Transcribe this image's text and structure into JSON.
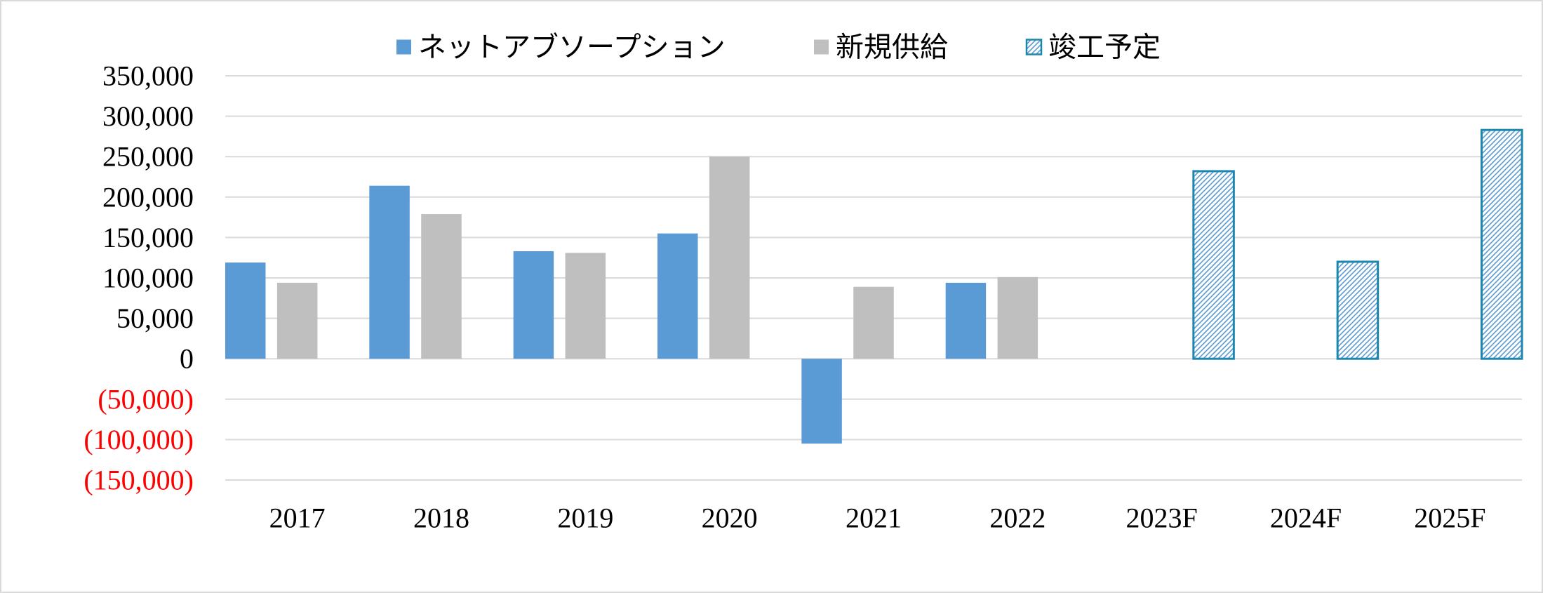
{
  "chart_data": {
    "type": "bar",
    "categories": [
      "2017",
      "2018",
      "2019",
      "2020",
      "2021",
      "2022",
      "2023F",
      "2024F",
      "2025F"
    ],
    "series": [
      {
        "name": "ネットアブソープション",
        "color": "#5b9bd5",
        "hatched": false,
        "values": [
          119000,
          214000,
          133000,
          155000,
          -105000,
          94000,
          null,
          null,
          null
        ]
      },
      {
        "name": "新規供給",
        "color": "#bfbfbf",
        "hatched": false,
        "values": [
          94000,
          179000,
          131000,
          250000,
          89000,
          101000,
          null,
          null,
          null
        ]
      },
      {
        "name": "竣工予定",
        "color": "#1b87ae",
        "hatched": true,
        "values": [
          null,
          null,
          null,
          null,
          null,
          null,
          232000,
          120000,
          283000
        ]
      }
    ],
    "ylim": [
      -150000,
      350000
    ],
    "yticks": [
      {
        "value": 350000,
        "label": "350,000"
      },
      {
        "value": 300000,
        "label": "300,000"
      },
      {
        "value": 250000,
        "label": "250,000"
      },
      {
        "value": 200000,
        "label": "200,000"
      },
      {
        "value": 150000,
        "label": "150,000"
      },
      {
        "value": 100000,
        "label": "100,000"
      },
      {
        "value": 50000,
        "label": "50,000"
      },
      {
        "value": 0,
        "label": "0"
      },
      {
        "value": -50000,
        "label": "(50,000)"
      },
      {
        "value": -100000,
        "label": "(100,000)"
      },
      {
        "value": -150000,
        "label": "(150,000)"
      }
    ],
    "negative_label_color": "#ff0000",
    "grid": true,
    "legend": "top"
  }
}
